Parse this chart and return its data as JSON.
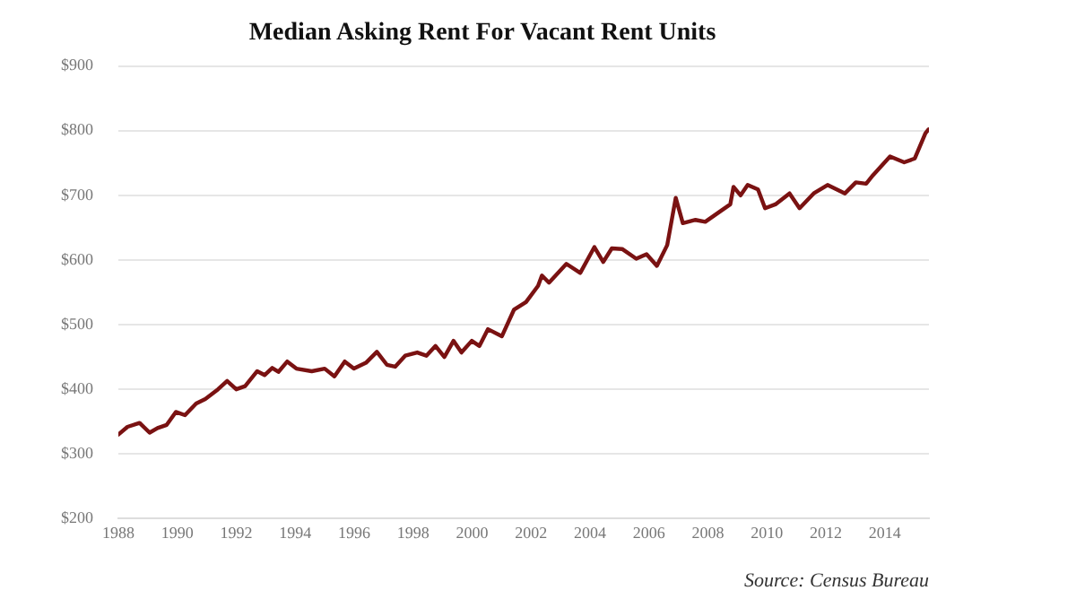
{
  "chart_data": {
    "type": "line",
    "title": "Median Asking Rent For Vacant Rent Units",
    "annotations": [
      "Source: Census Bureau"
    ],
    "x": [
      1988.0,
      1988.31,
      1988.72,
      1989.06,
      1989.33,
      1989.64,
      1989.95,
      1990.26,
      1990.64,
      1990.95,
      1991.38,
      1991.69,
      1992.0,
      1992.3,
      1992.71,
      1992.96,
      1993.22,
      1993.43,
      1993.73,
      1994.04,
      1994.56,
      1995.0,
      1995.33,
      1995.68,
      1995.99,
      1996.4,
      1996.77,
      1997.11,
      1997.39,
      1997.73,
      1998.14,
      1998.45,
      1998.76,
      1999.06,
      1999.37,
      1999.64,
      1999.99,
      2000.25,
      2000.54,
      2001.01,
      2001.42,
      2001.83,
      2002.24,
      2002.37,
      2002.61,
      2003.2,
      2003.67,
      2004.15,
      2004.45,
      2004.74,
      2005.09,
      2005.57,
      2005.92,
      2006.27,
      2006.62,
      2006.91,
      2007.15,
      2007.58,
      2007.91,
      2008.41,
      2008.76,
      2008.87,
      2009.11,
      2009.35,
      2009.7,
      2009.94,
      2010.29,
      2010.77,
      2011.11,
      2011.59,
      2012.06,
      2012.65,
      2013.02,
      2013.37,
      2013.6,
      2014.18,
      2014.66,
      2015.02,
      2015.38,
      2015.49
    ],
    "series": [
      {
        "color": "#7a1212",
        "values": [
          330,
          342,
          348,
          333,
          340,
          345,
          365,
          360,
          378,
          385,
          400,
          413,
          400,
          405,
          428,
          422,
          433,
          427,
          443,
          432,
          428,
          432,
          420,
          443,
          432,
          441,
          458,
          438,
          435,
          452,
          457,
          452,
          467,
          450,
          475,
          457,
          475,
          467,
          493,
          482,
          523,
          535,
          560,
          576,
          565,
          594,
          580,
          620,
          597,
          618,
          617,
          602,
          609,
          591,
          623,
          696,
          657,
          662,
          659,
          675,
          686,
          713,
          700,
          716,
          709,
          680,
          686,
          703,
          680,
          703,
          716,
          703,
          720,
          718,
          731,
          760,
          751,
          757,
          796,
          802
        ]
      }
    ],
    "xlim": [
      1988,
      2015.5
    ],
    "xticks": [
      1988,
      1990,
      1992,
      1994,
      1996,
      1998,
      2000,
      2002,
      2004,
      2006,
      2008,
      2010,
      2012,
      2014
    ],
    "ylim": [
      200,
      900
    ],
    "yticks": [
      {
        "value": 200,
        "label": "$200"
      },
      {
        "value": 300,
        "label": "$300"
      },
      {
        "value": 400,
        "label": "$400"
      },
      {
        "value": 500,
        "label": "$500"
      },
      {
        "value": 600,
        "label": "$600"
      },
      {
        "value": 700,
        "label": "$700"
      },
      {
        "value": 800,
        "label": "$800"
      },
      {
        "value": 900,
        "label": "$900"
      }
    ],
    "grid": "y",
    "legend": false,
    "marker": "none",
    "line_style": "solid"
  }
}
